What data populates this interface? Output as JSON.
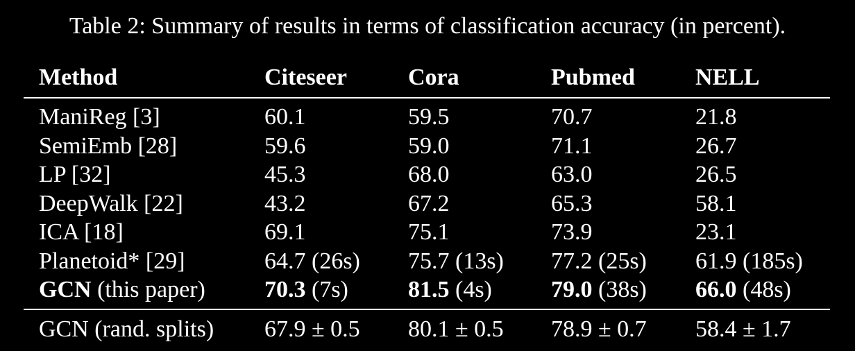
{
  "caption": "Table 2: Summary of results in terms of classification accuracy (in percent).",
  "columns": [
    "Method",
    "Citeseer",
    "Cora",
    "Pubmed",
    "NELL"
  ],
  "rows": [
    {
      "method": "ManiReg [3]",
      "cells": [
        {
          "value": "60.1",
          "extra": ""
        },
        {
          "value": "59.5",
          "extra": ""
        },
        {
          "value": "70.7",
          "extra": ""
        },
        {
          "value": "21.8",
          "extra": ""
        }
      ]
    },
    {
      "method": "SemiEmb [28]",
      "cells": [
        {
          "value": "59.6",
          "extra": ""
        },
        {
          "value": "59.0",
          "extra": ""
        },
        {
          "value": "71.1",
          "extra": ""
        },
        {
          "value": "26.7",
          "extra": ""
        }
      ]
    },
    {
      "method": "LP [32]",
      "cells": [
        {
          "value": "45.3",
          "extra": ""
        },
        {
          "value": "68.0",
          "extra": ""
        },
        {
          "value": "63.0",
          "extra": ""
        },
        {
          "value": "26.5",
          "extra": ""
        }
      ]
    },
    {
      "method": "DeepWalk [22]",
      "cells": [
        {
          "value": "43.2",
          "extra": ""
        },
        {
          "value": "67.2",
          "extra": ""
        },
        {
          "value": "65.3",
          "extra": ""
        },
        {
          "value": "58.1",
          "extra": ""
        }
      ]
    },
    {
      "method": "ICA [18]",
      "cells": [
        {
          "value": "69.1",
          "extra": ""
        },
        {
          "value": "75.1",
          "extra": ""
        },
        {
          "value": "73.9",
          "extra": ""
        },
        {
          "value": "23.1",
          "extra": ""
        }
      ]
    },
    {
      "method": "Planetoid* [29]",
      "cells": [
        {
          "value": "64.7",
          "extra": " (26s)"
        },
        {
          "value": "75.7",
          "extra": " (13s)"
        },
        {
          "value": "77.2",
          "extra": " (25s)"
        },
        {
          "value": "61.9",
          "extra": " (185s)"
        }
      ]
    }
  ],
  "gcn_row": {
    "method_bold": "GCN",
    "method_rest": " (this paper)",
    "cells": [
      {
        "value": "70.3",
        "extra": " (7s)"
      },
      {
        "value": "81.5",
        "extra": " (4s)"
      },
      {
        "value": "79.0",
        "extra": " (38s)"
      },
      {
        "value": "66.0",
        "extra": " (48s)"
      }
    ]
  },
  "splits_row": {
    "method": "GCN (rand. splits)",
    "cells": [
      "67.9 ± 0.5",
      "80.1 ± 0.5",
      "78.9 ± 0.7",
      "58.4 ± 1.7"
    ]
  }
}
